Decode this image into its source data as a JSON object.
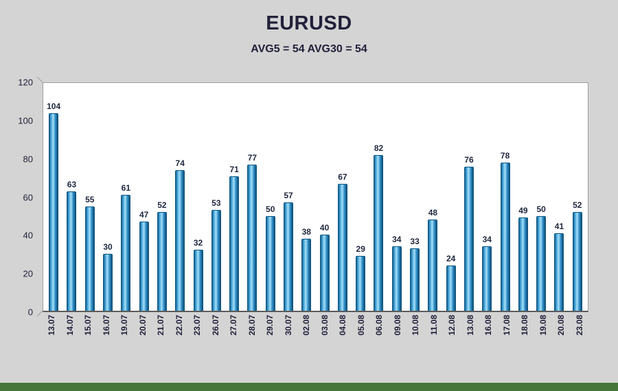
{
  "page": {
    "background": "#d4d4d4",
    "footer_color": "#47763a"
  },
  "chart_data": {
    "type": "bar",
    "title": "EURUSD",
    "subtitle": "AVG5 = 54 AVG30 = 54",
    "categories": [
      "13.07",
      "14.07",
      "15.07",
      "16.07",
      "19.07",
      "20.07",
      "21.07",
      "22.07",
      "23.07",
      "26.07",
      "27.07",
      "28.07",
      "29.07",
      "30.07",
      "02.08",
      "03.08",
      "04.08",
      "05.08",
      "06.08",
      "09.08",
      "10.08",
      "11.08",
      "12.08",
      "13.08",
      "16.08",
      "17.08",
      "18.08",
      "19.08",
      "20.08",
      "23.08"
    ],
    "values": [
      104,
      63,
      55,
      30,
      61,
      47,
      52,
      74,
      32,
      53,
      71,
      77,
      50,
      57,
      38,
      40,
      67,
      29,
      82,
      34,
      33,
      48,
      24,
      76,
      34,
      78,
      49,
      50,
      41,
      52
    ],
    "ylim": [
      0,
      120
    ],
    "yticks": [
      0,
      20,
      40,
      60,
      80,
      100,
      120
    ],
    "grid": false,
    "legend": "none",
    "xlabel": "",
    "ylabel": "",
    "bar_gradient": [
      "#15618f",
      "#4aa8dc",
      "#a6e0f7",
      "#2e8dc8",
      "#0f4f75"
    ]
  }
}
